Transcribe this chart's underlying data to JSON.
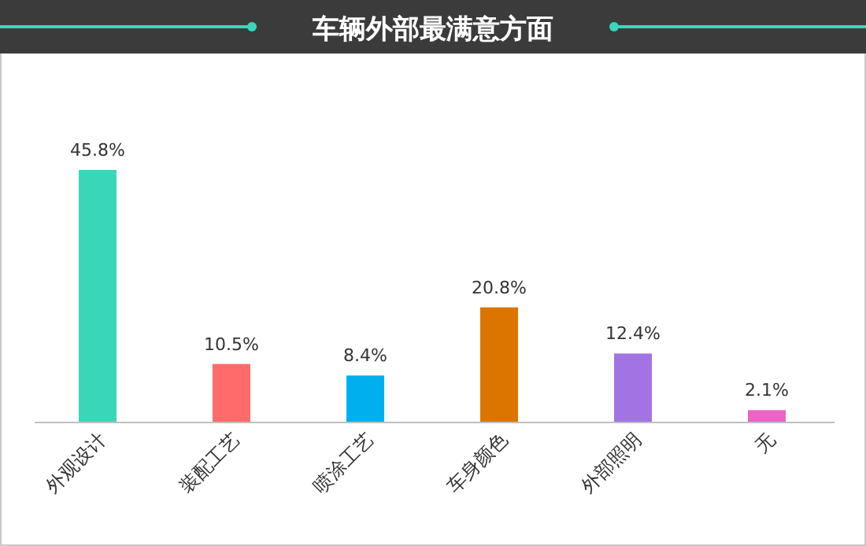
{
  "chart_data": {
    "type": "bar",
    "title": "车辆外部最满意方面",
    "categories": [
      "外观设计",
      "装配工艺",
      "喷涂工艺",
      "车身颜色",
      "外部照明",
      "无"
    ],
    "values": [
      45.8,
      10.5,
      8.4,
      20.8,
      12.4,
      2.1
    ],
    "colors": [
      "#3ad6b9",
      "#ff6b6b",
      "#00b0ee",
      "#dc7400",
      "#a273e3",
      "#ea63c6"
    ],
    "value_labels": [
      "45.8%",
      "10.5%",
      "8.4%",
      "20.8%",
      "12.4%",
      "2.1%"
    ]
  }
}
